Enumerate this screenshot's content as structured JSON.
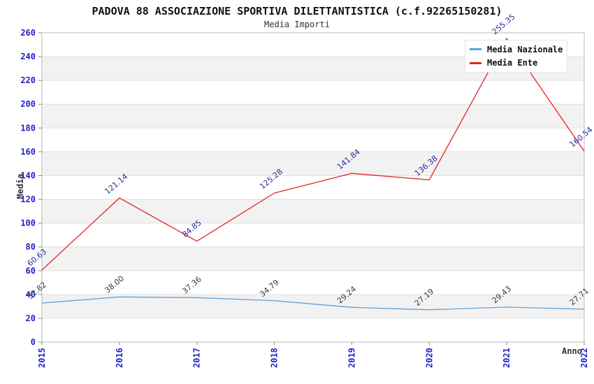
{
  "chart_data": {
    "type": "line",
    "title": "PADOVA 88 ASSOCIAZIONE SPORTIVA DILETTANTISTICA (c.f.92265150281)",
    "subtitle": "Media Importi",
    "xlabel": "Anno",
    "ylabel": "Media",
    "x": [
      "2015",
      "2016",
      "2017",
      "2018",
      "2019",
      "2020",
      "2021",
      "2022"
    ],
    "series": [
      {
        "name": "Media Nazionale",
        "color": "#64a1d8",
        "label_color": "#3a3a3a",
        "values": [
          32.82,
          38.0,
          37.36,
          34.79,
          29.24,
          27.19,
          29.43,
          27.71
        ]
      },
      {
        "name": "Media Ente",
        "color": "#e82323",
        "label_color": "#2b2b9e",
        "values": [
          60.63,
          121.14,
          84.85,
          125.28,
          141.84,
          136.38,
          255.35,
          160.54
        ]
      }
    ],
    "ylim": [
      0,
      260
    ],
    "ytick_step": 20,
    "grid": "horizontal-bands",
    "legend_position": "top-right",
    "value_label_decimals": 2
  },
  "colors": {
    "tick_label": "#2222cc",
    "axis_title": "#333333",
    "title_text": "#111111",
    "band": "#f2f2f2",
    "grid_line": "#e0e0e0",
    "plot_border": "#b8b8b8",
    "tick_mark": "#888888",
    "legend_bg": "#ffffff",
    "legend_border": "#e6e6e6"
  }
}
